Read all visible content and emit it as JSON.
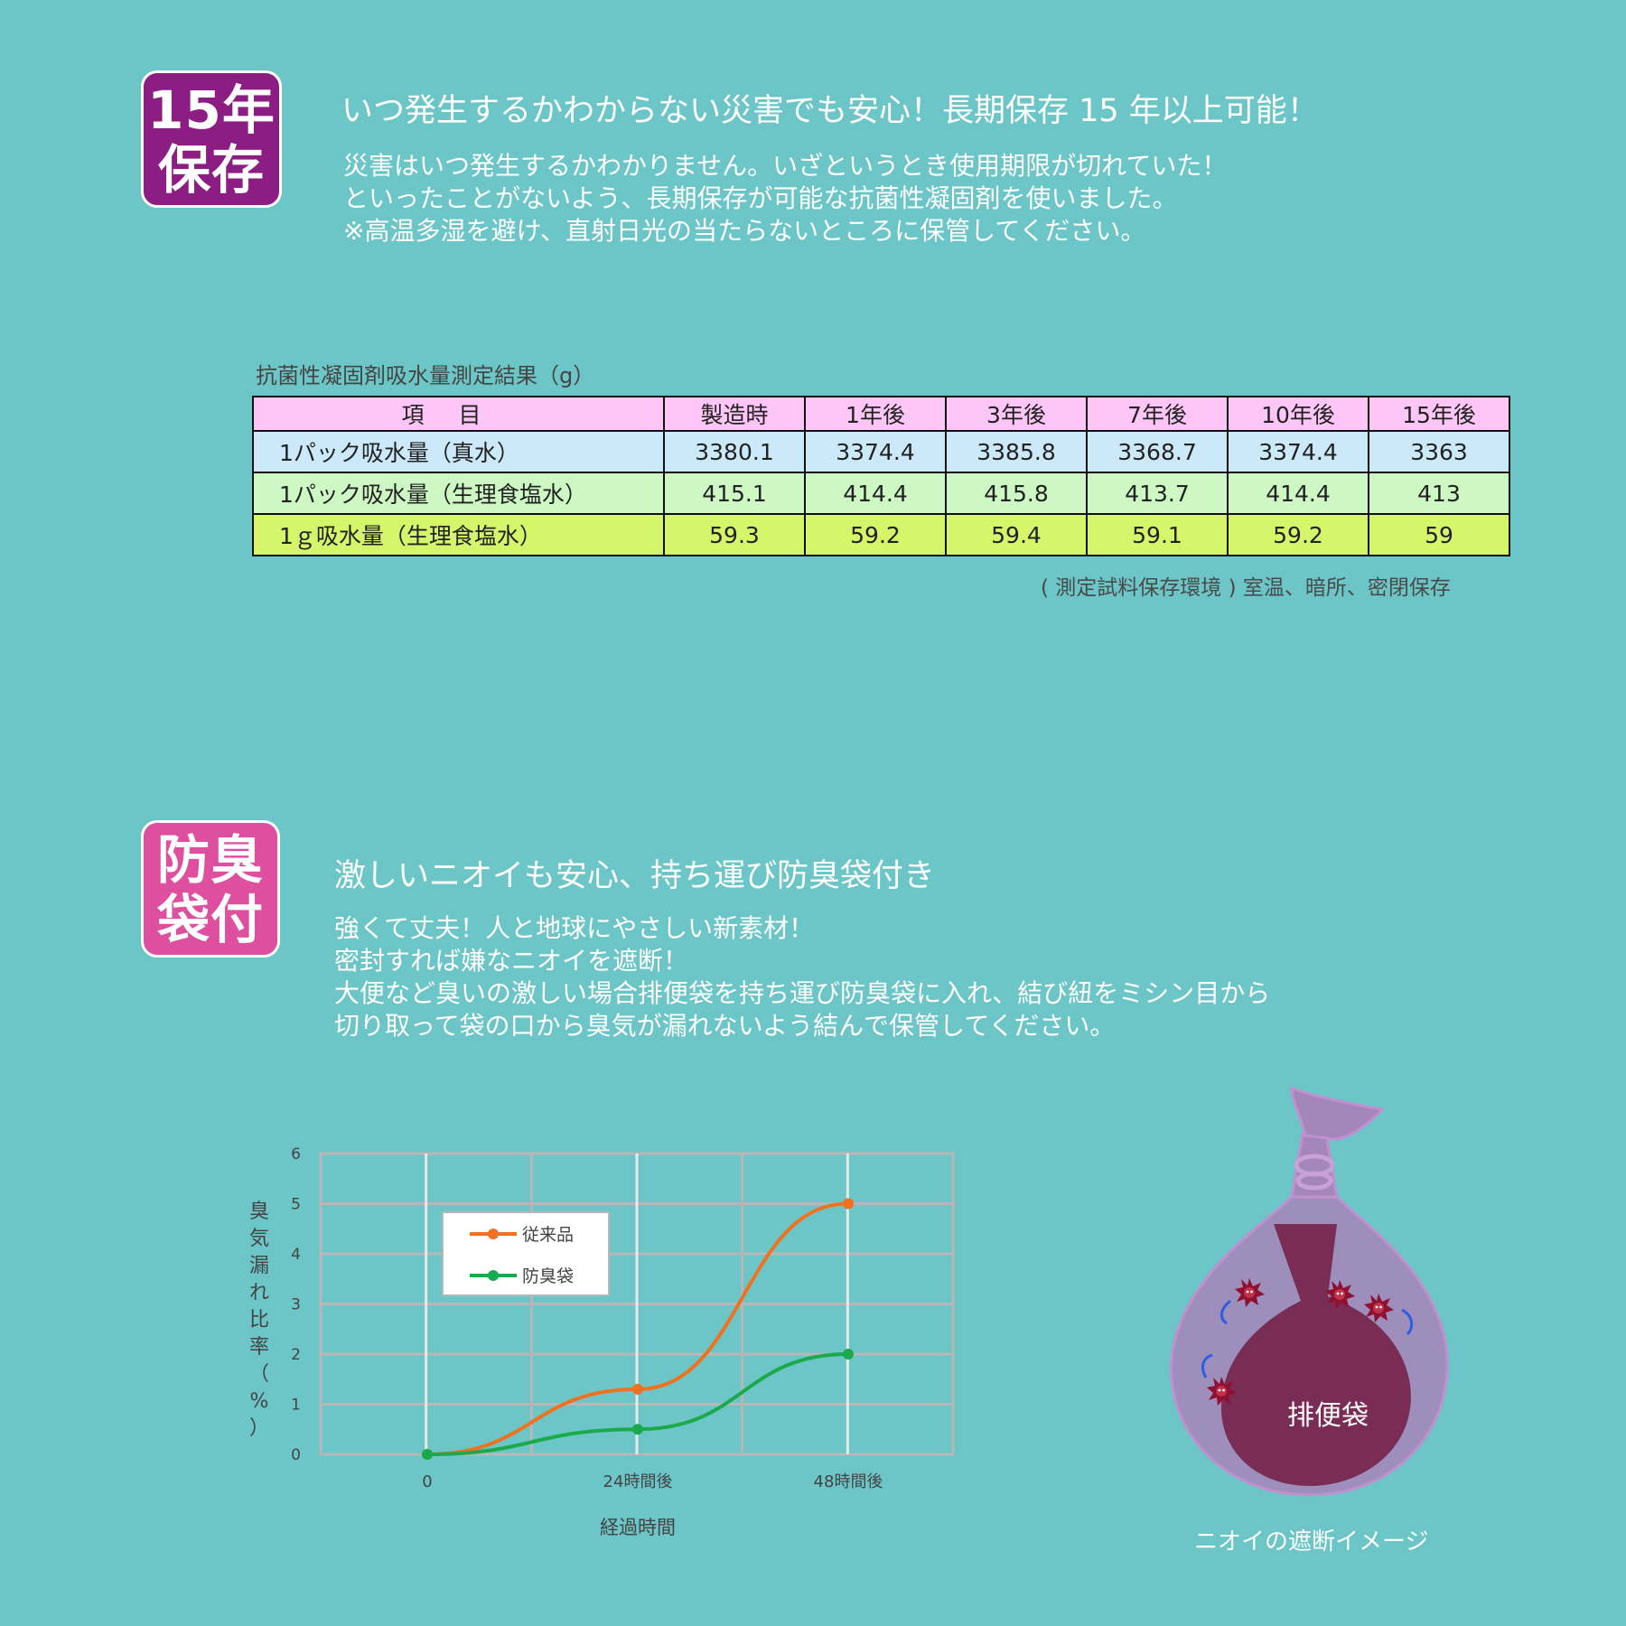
{
  "section1": {
    "badge": [
      "15年",
      "保存"
    ],
    "heading": "いつ発生するかわからない災害でも安心！長期保存 15 年以上可能！",
    "body": [
      "災害はいつ発生するかわかりません。いざというとき使用期限が切れていた！",
      "といったことがないよう、長期保存が可能な抗菌性凝固剤を使いました。",
      "※高温多湿を避け、直射日光の当たらないところに保管してください。"
    ],
    "table": {
      "caption": "抗菌性凝固剤吸水量測定結果（g）",
      "headers": [
        "項目",
        "製造時",
        "1年後",
        "3年後",
        "7年後",
        "10年後",
        "15年後"
      ],
      "rows": [
        [
          "1パック吸水量（真水）",
          "3380.1",
          "3374.4",
          "3385.8",
          "3368.7",
          "3374.4",
          "3363"
        ],
        [
          "1パック吸水量（生理食塩水）",
          "415.1",
          "414.4",
          "415.8",
          "413.7",
          "414.4",
          "413"
        ],
        [
          "1ｇ吸水量（生理食塩水）",
          "59.3",
          "59.2",
          "59.4",
          "59.1",
          "59.2",
          "59"
        ]
      ],
      "note": "( 測定試料保存環境 ) 室温、暗所、密閉保存"
    }
  },
  "section2": {
    "badge": [
      "防臭",
      "袋付"
    ],
    "heading": "激しいニオイも安心、持ち運び防臭袋付き",
    "body": [
      "強くて丈夫！人と地球にやさしい新素材！",
      "密封すれば嫌なニオイを遮断！",
      "大便など臭いの激しい場合排便袋を持ち運び防臭袋に入れ、結び紐をミシン目から",
      "切り取って袋の口から臭気が漏れないよう結んで保管してください。"
    ],
    "illustration": {
      "inner_bag_label": "排便袋",
      "caption": "ニオイの遮断イメージ"
    }
  },
  "colors": {
    "background": "#6cc5c6",
    "badge1": "#8c1d82",
    "badge2": "#df4f9f",
    "series_conventional": "#f0711e",
    "series_deodorant": "#1aaa4c"
  },
  "chart_data": {
    "type": "line",
    "x": [
      "0",
      "24時間後",
      "48時間後"
    ],
    "series": [
      {
        "name": "従来品",
        "values": [
          0,
          1.3,
          5
        ],
        "color": "#f0711e"
      },
      {
        "name": "防臭袋",
        "values": [
          0,
          0.5,
          2
        ],
        "color": "#1aaa4c"
      }
    ],
    "xlabel": "経過時間",
    "ylabel": "臭気漏れ比率（%）",
    "ylabel_chars": [
      "臭",
      "気",
      "漏",
      "れ",
      "比",
      "率",
      "（",
      "%",
      "）"
    ],
    "ylim": [
      0,
      6
    ],
    "yticks": [
      "0",
      "1",
      "2",
      "3",
      "4",
      "5",
      "6"
    ],
    "grid": true,
    "legend_position": "top-left"
  }
}
